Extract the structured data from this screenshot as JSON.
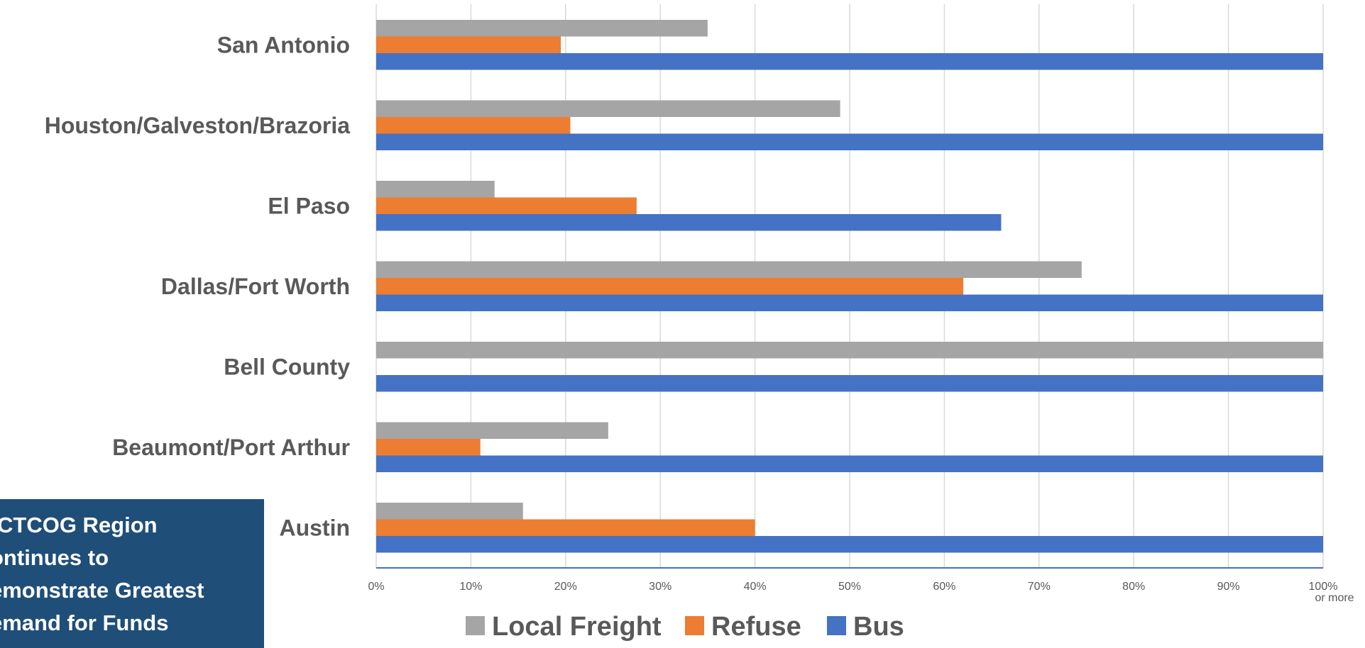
{
  "chart_data": {
    "type": "bar",
    "orientation": "horizontal",
    "categories": [
      "San Antonio",
      "Houston/Galveston/Brazoria",
      "El Paso",
      "Dallas/Fort Worth",
      "Bell County",
      "Beaumont/Port Arthur",
      "Austin"
    ],
    "series": [
      {
        "name": "Local Freight",
        "color": "#a5a5a5",
        "values": [
          35,
          49,
          12.5,
          74.5,
          100,
          24.5,
          15.5
        ]
      },
      {
        "name": "Refuse",
        "color": "#ed7d31",
        "values": [
          19.5,
          20.5,
          27.5,
          62,
          0,
          11,
          40
        ]
      },
      {
        "name": "Bus",
        "color": "#4472c4",
        "values": [
          100,
          100,
          66,
          100,
          100,
          100,
          100
        ]
      }
    ],
    "xlim": [
      0,
      100
    ],
    "x_ticks": [
      "0%",
      "10%",
      "20%",
      "30%",
      "40%",
      "50%",
      "60%",
      "70%",
      "80%",
      "90%",
      "100%"
    ],
    "x_last_tick_sublabel": "or more",
    "grid": true,
    "legend_position": "bottom",
    "title": "",
    "xlabel": "",
    "ylabel": ""
  },
  "callout": {
    "lines": [
      "CTCOG Region",
      "ontinues to",
      "emonstrate Greatest",
      "emand for Funds"
    ]
  }
}
